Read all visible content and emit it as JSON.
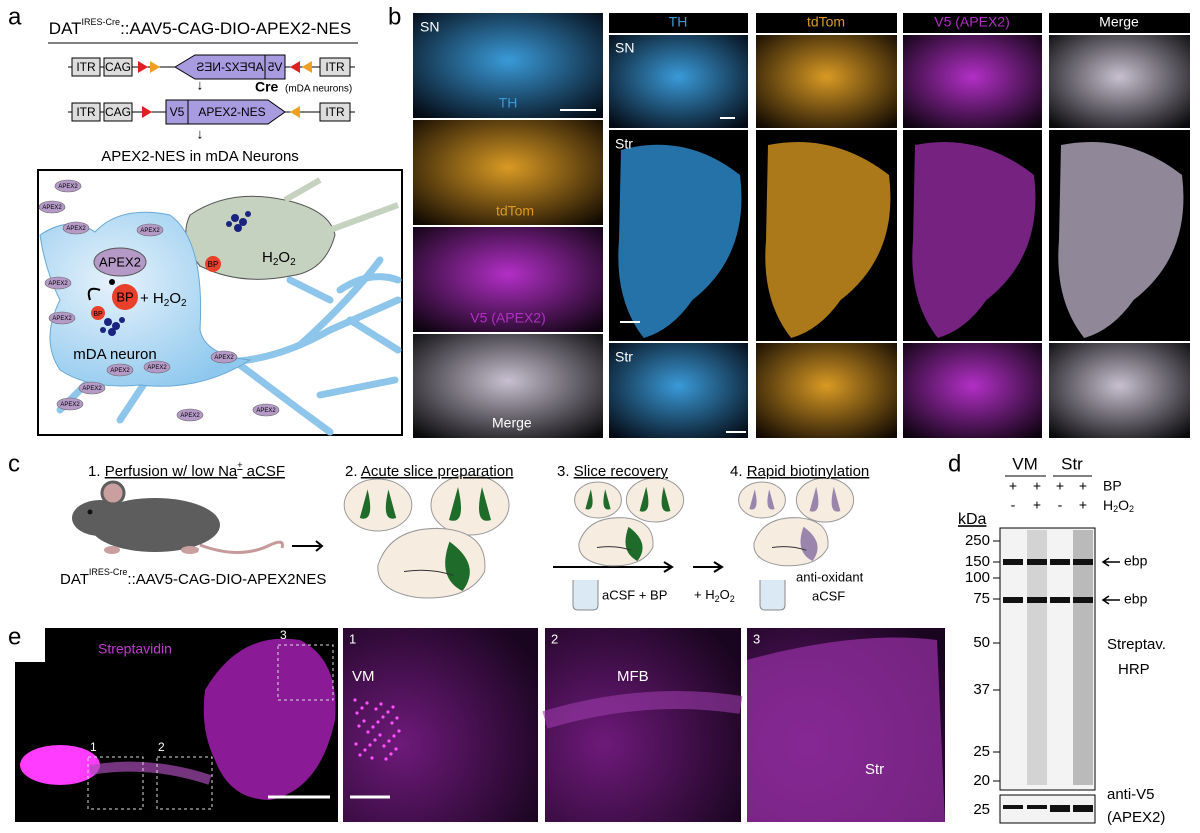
{
  "panel_a": {
    "label": "a",
    "construct_title": {
      "main": "DAT",
      "sup": "IRES-Cre",
      "rest": "::AAV5-CAG-DIO-APEX2-NES"
    },
    "construct_1": [
      "ITR",
      "CAG",
      "V5",
      "APEX2-NES",
      "ITR"
    ],
    "cre": {
      "label": "Cre",
      "note": "(mDA neurons)"
    },
    "construct_2": [
      "ITR",
      "CAG",
      "V5",
      "APEX2-NES",
      "ITR"
    ],
    "result": "APEX2-NES in mDA Neurons",
    "diagram": {
      "enzyme": "APEX2",
      "substrate": "BP",
      "reaction": {
        "plus": "+ H",
        "sub1": "2",
        "o": "O",
        "sub2": "2"
      },
      "peroxide": {
        "h": "H",
        "sub1": "2",
        "o": "O",
        "sub2": "2"
      },
      "small_bp": [
        "BP",
        "BP"
      ],
      "neuron": "mDA neuron",
      "tags": [
        "APEX2",
        "APEX2",
        "APEX2",
        "APEX2",
        "APEX2",
        "APEX2",
        "APEX2",
        "APEX2",
        "APEX2",
        "APEX2",
        "APEX2",
        "APEX2",
        "APEX2"
      ]
    }
  },
  "panel_b": {
    "label": "b",
    "left": [
      "SN",
      "TH",
      "tdTom",
      "V5 (APEX2)",
      "Merge"
    ],
    "headers": [
      "TH",
      "tdTom",
      "V5 (APEX2)",
      "Merge"
    ],
    "rows": [
      "SN",
      "Str",
      "Str"
    ]
  },
  "panel_c": {
    "label": "c",
    "steps": [
      {
        "number": "1.",
        "title": "Perfusion w/ low Na",
        "sup": "+",
        "rest": " aCSF"
      },
      {
        "number": "2.",
        "title": "Acute slice preparation"
      },
      {
        "number": "3.",
        "title": "Slice recovery"
      },
      {
        "number": "4.",
        "title": "Rapid biotinylation"
      }
    ],
    "mouse_label": {
      "main": "DAT",
      "sup": "IRES-Cre",
      "rest": "::AAV5-CAG-DIO-APEX2NES"
    },
    "recovery_buffer": "aCSF + BP",
    "peroxide": {
      "text": "+ H",
      "sub1": "2",
      "o": "O",
      "sub2": "2"
    },
    "quench": [
      "anti-oxidant",
      "aCSF"
    ]
  },
  "panel_d": {
    "label": "d",
    "groups": [
      "VM",
      "Str"
    ],
    "bp_row": {
      "name": "BP",
      "signs": [
        "+",
        "+",
        "+",
        "+"
      ]
    },
    "h2o2_row": {
      "h": "H",
      "sub1": "2",
      "o": "O",
      "sub2": "2",
      "signs": [
        "-",
        "+",
        "-",
        "+"
      ]
    },
    "unit": "kDa",
    "markers": [
      250,
      150,
      100,
      75,
      50,
      37,
      25,
      20
    ],
    "arrows": [
      "ebp",
      "ebp"
    ],
    "probe_1": [
      "Streptav.",
      "HRP"
    ],
    "probe_2": [
      "anti-V5",
      "(APEX2)"
    ],
    "probe_2_marker": 25
  },
  "panel_e": {
    "label": "e",
    "stain": "Streptavidin",
    "boxes": [
      "1",
      "2",
      "3"
    ],
    "insets": [
      {
        "number": "1",
        "region": "VM"
      },
      {
        "number": "2",
        "region": "MFB"
      },
      {
        "number": "3",
        "region": "Str"
      }
    ]
  }
}
